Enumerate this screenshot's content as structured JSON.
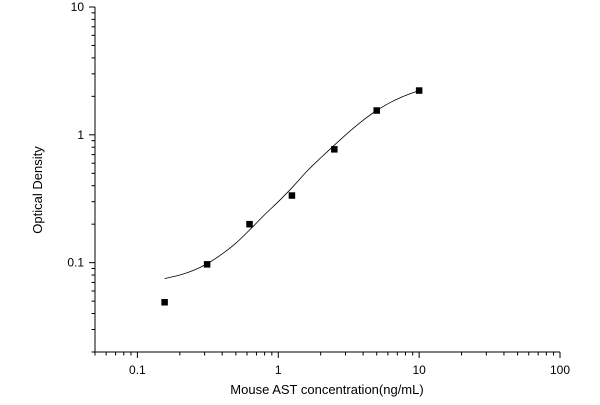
{
  "chart_data": {
    "type": "scatter",
    "title": "",
    "xlabel": "Mouse AST concentration(ng/mL)",
    "ylabel": "Optical Density",
    "x_scale": "log",
    "y_scale": "log",
    "xlim": [
      0.05,
      100
    ],
    "ylim": [
      0.02,
      10
    ],
    "x_major_ticks": [
      0.1,
      1,
      10,
      100
    ],
    "x_tick_labels": [
      "0.1",
      "1",
      "10",
      "100"
    ],
    "y_major_ticks": [
      0.1,
      1,
      10
    ],
    "y_tick_labels": [
      "0.1",
      "1",
      "10"
    ],
    "grid": false,
    "legend": "none",
    "marker_color": "#000000",
    "curve_color": "#000000",
    "series": [
      {
        "marker": "square",
        "points": [
          {
            "x": 0.156,
            "y": 0.049
          },
          {
            "x": 0.3125,
            "y": 0.097
          },
          {
            "x": 0.625,
            "y": 0.2
          },
          {
            "x": 1.25,
            "y": 0.335
          },
          {
            "x": 2.5,
            "y": 0.77
          },
          {
            "x": 5,
            "y": 1.55
          },
          {
            "x": 10,
            "y": 2.22
          }
        ]
      }
    ],
    "fit_curve": {
      "x": [
        0.156,
        0.2,
        0.25,
        0.3125,
        0.4,
        0.5,
        0.625,
        0.8,
        1.0,
        1.25,
        1.6,
        2.0,
        2.5,
        3.2,
        4.0,
        5.0,
        6.3,
        8.0,
        10
      ],
      "y": [
        0.075,
        0.08,
        0.087,
        0.098,
        0.117,
        0.142,
        0.18,
        0.237,
        0.3,
        0.385,
        0.52,
        0.66,
        0.83,
        1.06,
        1.3,
        1.55,
        1.8,
        2.03,
        2.22
      ]
    }
  }
}
